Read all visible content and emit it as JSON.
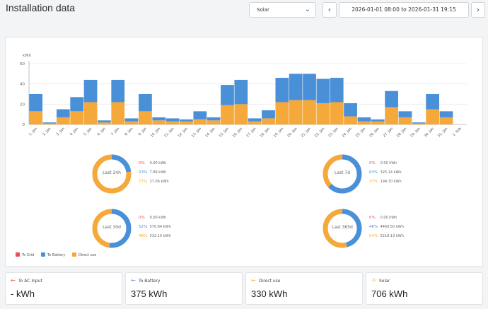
{
  "header": {
    "title": "Installation data",
    "source_select": "Solar",
    "prev_icon": "chevron-left-icon",
    "next_icon": "chevron-right-icon",
    "date_range": "2026-01-01 08:00 to 2026-01-31 19:15"
  },
  "colors": {
    "grid": "#e8505b",
    "battery": "#4a90d9",
    "direct": "#f5a93b"
  },
  "chart_data": {
    "type": "bar",
    "ylabel": "kWh",
    "ylim": [
      0,
      60
    ],
    "yticks": [
      "0",
      "20",
      "40",
      "60"
    ],
    "categories": [
      "1. Jan",
      "2. Jan",
      "3. Jan",
      "4. Jan",
      "5. Jan",
      "6. Jan",
      "7. Jan",
      "8. Jan",
      "9. Jan",
      "10. Jan",
      "11. Jan",
      "12. Jan",
      "13. Jan",
      "14. Jan",
      "15. Jan",
      "16. Jan",
      "17. Jan",
      "18. Jan",
      "19. Jan",
      "20. Jan",
      "21. Jan",
      "22. Jan",
      "23. Jan",
      "24. Jan",
      "25. Jan",
      "26. Jan",
      "27. Jan",
      "28. Jan",
      "29. Jan",
      "30. Jan",
      "31. Jan",
      "1. Feb"
    ],
    "series": [
      {
        "name": "Direct use",
        "values": [
          13,
          1,
          7,
          13,
          22,
          2,
          22,
          3,
          13,
          4,
          3,
          3,
          5,
          4,
          19,
          20,
          3,
          6,
          22,
          24,
          24,
          21,
          22,
          8,
          3,
          3,
          17,
          7,
          1,
          15,
          7,
          0
        ]
      },
      {
        "name": "To Battery",
        "values": [
          17,
          1,
          8,
          14,
          22,
          2,
          22,
          3,
          17,
          3,
          3,
          2,
          8,
          3,
          20,
          24,
          3,
          8,
          24,
          26,
          26,
          24,
          24,
          13,
          4,
          2,
          16,
          6,
          1,
          15,
          6,
          0
        ]
      },
      {
        "name": "To Grid",
        "values": [
          0,
          0,
          0,
          0,
          0,
          0,
          0,
          0,
          0,
          0,
          0,
          0,
          0,
          0,
          0,
          0,
          0,
          0,
          0,
          0,
          0,
          0,
          0,
          0,
          0,
          0,
          0,
          0,
          0,
          0,
          0,
          0
        ]
      }
    ]
  },
  "donuts": [
    {
      "center": "Last 24h",
      "rows": [
        {
          "pct": "0%",
          "value": "0.00 kWh"
        },
        {
          "pct": "23%",
          "value": "7.89 kWh"
        },
        {
          "pct": "77%",
          "value": "27.06 kWh"
        }
      ],
      "battery_frac": 0.23,
      "direct_frac": 0.77
    },
    {
      "center": "Last 7d",
      "rows": [
        {
          "pct": "0%",
          "value": "0.00 kWh"
        },
        {
          "pct": "63%",
          "value": "325.14 kWh"
        },
        {
          "pct": "37%",
          "value": "194.70 kWh"
        }
      ],
      "battery_frac": 0.63,
      "direct_frac": 0.37
    },
    {
      "center": "Last 30d",
      "rows": [
        {
          "pct": "0%",
          "value": "0.00 kWh"
        },
        {
          "pct": "52%",
          "value": "570.64 kWh"
        },
        {
          "pct": "48%",
          "value": "532.15 kWh"
        }
      ],
      "battery_frac": 0.52,
      "direct_frac": 0.48
    },
    {
      "center": "Last 365d",
      "rows": [
        {
          "pct": "0%",
          "value": "0.00 kWh"
        },
        {
          "pct": "46%",
          "value": "4460.50 kWh"
        },
        {
          "pct": "54%",
          "value": "5218.13 kWh"
        }
      ],
      "battery_frac": 0.46,
      "direct_frac": 0.54
    }
  ],
  "legend": [
    "To Grid",
    "To Battery",
    "Direct use"
  ],
  "stats": [
    {
      "label": "To AC Input",
      "value": "- kWh",
      "icon": "arrow-left-icon"
    },
    {
      "label": "To Battery",
      "value": "375 kWh",
      "icon": "arrow-left-icon"
    },
    {
      "label": "Direct use",
      "value": "330 kWh",
      "icon": "arrow-left-icon"
    },
    {
      "label": "Solar",
      "value": "706 kWh",
      "icon": "sun-icon"
    }
  ]
}
